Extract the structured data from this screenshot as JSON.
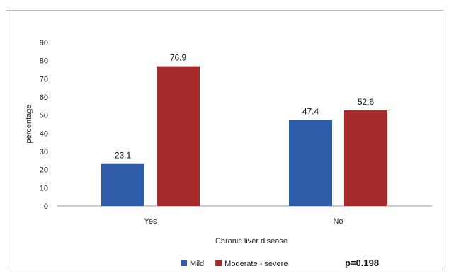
{
  "chart_data": {
    "type": "bar",
    "categories": [
      "Yes",
      "No"
    ],
    "series": [
      {
        "name": "Mild",
        "color": "#2e5ca8",
        "values": [
          23.1,
          47.4
        ]
      },
      {
        "name": "Moderate - severe",
        "color": "#a52a2a",
        "values": [
          76.9,
          52.6
        ]
      }
    ],
    "data_labels": [
      [
        "23.1",
        "47.4"
      ],
      [
        "76.9",
        "52.6"
      ]
    ],
    "ylabel": "percentage",
    "xlabel": "Chronic liver disease",
    "ylim": [
      0,
      90
    ],
    "yticks": [
      0,
      10,
      20,
      30,
      40,
      50,
      60,
      70,
      80,
      90
    ],
    "grid": false,
    "legend": "bottom",
    "annotation": "p=0.198"
  }
}
